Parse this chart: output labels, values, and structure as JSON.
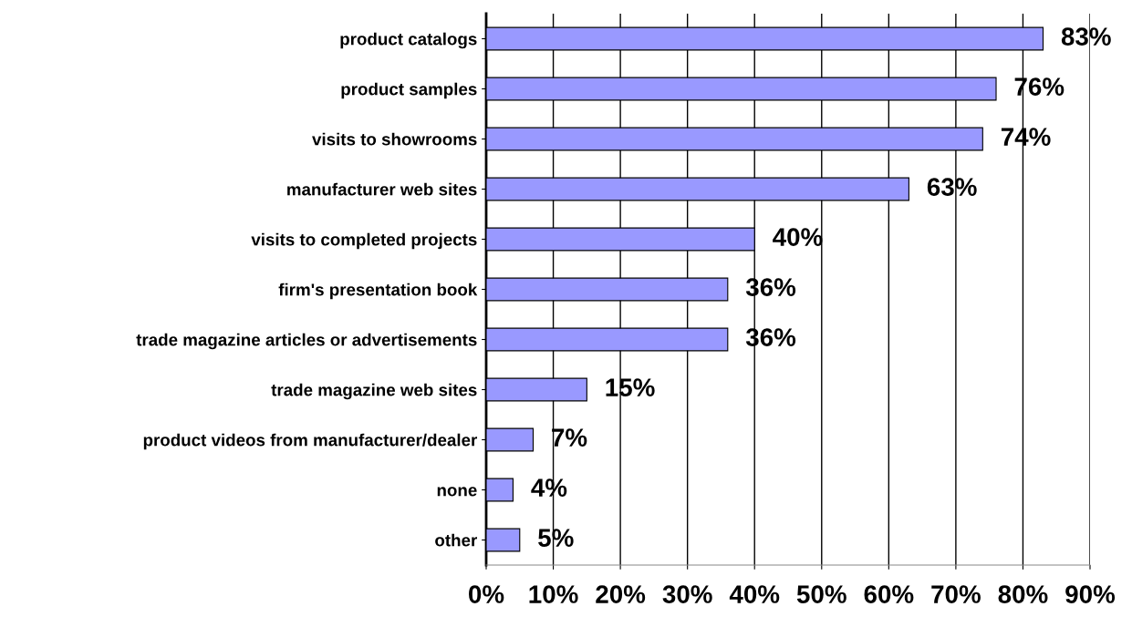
{
  "chart_data": {
    "type": "bar",
    "orientation": "horizontal",
    "categories": [
      "product catalogs",
      "product samples",
      "visits to showrooms",
      "manufacturer web sites",
      "visits to completed projects",
      "firm's presentation book",
      "trade magazine articles or advertisements",
      "trade magazine web sites",
      "product videos from manufacturer/dealer",
      "none",
      "other"
    ],
    "values": [
      83,
      76,
      74,
      63,
      40,
      36,
      36,
      15,
      7,
      4,
      5
    ],
    "value_labels": [
      "83%",
      "76%",
      "74%",
      "63%",
      "40%",
      "36%",
      "36%",
      "15%",
      "7%",
      "4%",
      "5%"
    ],
    "color": "#9999ff",
    "xlim": [
      0,
      90
    ],
    "xticks": [
      {
        "value": 0,
        "label": "0%"
      },
      {
        "value": 10,
        "label": "10%"
      },
      {
        "value": 20,
        "label": "20%"
      },
      {
        "value": 30,
        "label": "30%"
      },
      {
        "value": 40,
        "label": "40%"
      },
      {
        "value": 50,
        "label": "50%"
      },
      {
        "value": 60,
        "label": "60%"
      },
      {
        "value": 70,
        "label": "70%"
      },
      {
        "value": 80,
        "label": "80%"
      },
      {
        "value": 90,
        "label": "90%"
      }
    ],
    "grid": "x"
  }
}
